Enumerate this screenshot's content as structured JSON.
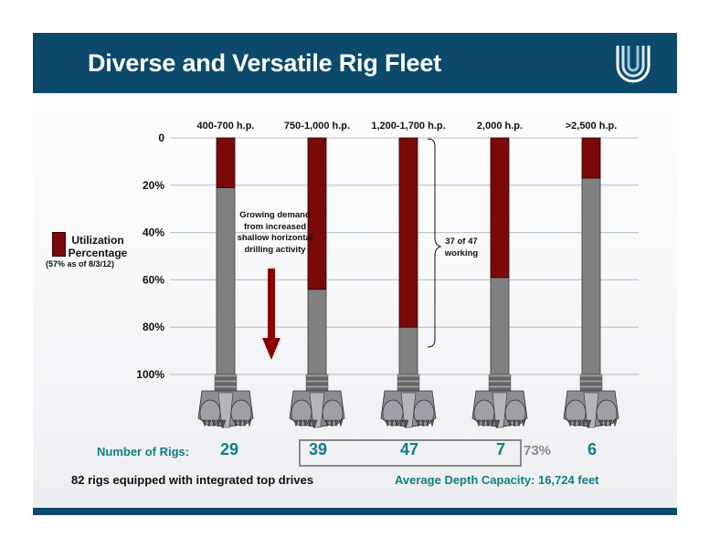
{
  "header": {
    "title": "Diverse and Versatile Rig Fleet"
  },
  "legend": {
    "label": "Utilization Percentage",
    "sublabel": "(57% as of 8/3/12)",
    "color": "#7a0a0a"
  },
  "annotations": {
    "demand": "Growing demand from increased shallow horizontal drilling activity",
    "working": "37 of 47 working"
  },
  "summary": {
    "rigs_label": "Number of Rigs:",
    "rig_counts": [
      "29",
      "39",
      "47",
      "7",
      "6"
    ],
    "highlight_pct": "73%",
    "topdrives": "82 rigs equipped with integrated top drives",
    "depth": "Average Depth Capacity: 16,724 feet"
  },
  "chart_data": {
    "type": "bar",
    "title": "",
    "xlabel": "",
    "ylabel": "",
    "y_axis_orientation": "inverted",
    "ylim": [
      0,
      100
    ],
    "yticks": [
      "0",
      "20%",
      "40%",
      "60%",
      "80%",
      "100%"
    ],
    "categories": [
      "400-700 h.p.",
      "750-1,000 h.p.",
      "1,200-1,700 h.p.",
      "2,000 h.p.",
      ">2,500 h.p."
    ],
    "series": [
      {
        "name": "Utilization Percentage",
        "values": [
          21,
          64,
          80,
          59,
          17
        ],
        "color": "#7a0a0a"
      }
    ],
    "remainder_color": "#808080",
    "grid": true,
    "legend_position": "left"
  }
}
